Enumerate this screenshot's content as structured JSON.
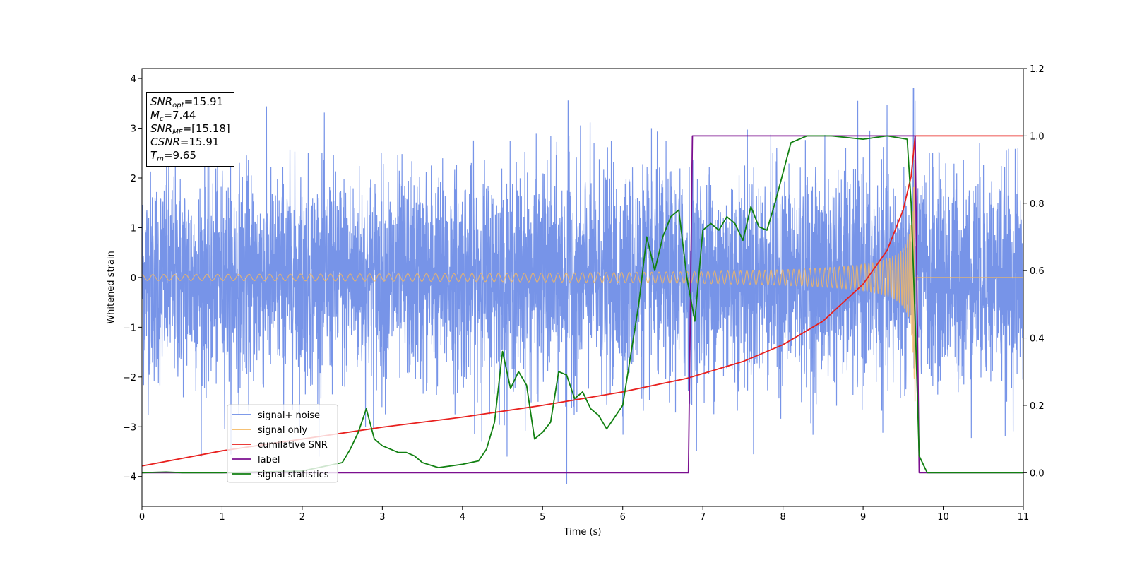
{
  "chart_data": {
    "type": "line",
    "xlabel": "Time (s)",
    "ylabel": "Whitened strain",
    "xlim": [
      0,
      11
    ],
    "ylim": [
      -4.6,
      4.2
    ],
    "y2lim": [
      -0.1,
      1.2
    ],
    "grid": false,
    "legend_position": "lower-left",
    "x_ticks": [
      0,
      1,
      2,
      3,
      4,
      5,
      6,
      7,
      8,
      9,
      10,
      11
    ],
    "x_tick_labels": [
      "0",
      "1",
      "2",
      "3",
      "4",
      "5",
      "6",
      "7",
      "8",
      "9",
      "10",
      "11"
    ],
    "y_ticks": [
      -4,
      -3,
      -2,
      -1,
      0,
      1,
      2,
      3,
      4
    ],
    "y_tick_labels": [
      "−4",
      "−3",
      "−2",
      "−1",
      "0",
      "1",
      "2",
      "3",
      "4"
    ],
    "y2_ticks": [
      0.0,
      0.2,
      0.4,
      0.6,
      0.8,
      1.0,
      1.2
    ],
    "y2_tick_labels": [
      "0.0",
      "0.2",
      "0.4",
      "0.6",
      "0.8",
      "1.0",
      "1.2"
    ],
    "annotation": {
      "snr_opt_sym": "SNR",
      "snr_opt_sub": "opt",
      "snr_opt_val": "=15.91",
      "mc_sym": "M",
      "mc_sub": "c",
      "mc_val": "=7.44",
      "snr_mf_sym": "SNR",
      "snr_mf_sub": "MF",
      "snr_mf_val": "=[15.18]",
      "csnr_sym": "CSNR",
      "csnr_val": "=15.91",
      "tm_sym": "T",
      "tm_sub": "m",
      "tm_val": "=9.65"
    },
    "series": [
      {
        "name": "signal+ noise",
        "color": "#6b8be6",
        "axis": "left",
        "description_values": "dense Gaussian-like noise, std ~1, extremes about -4.15 to 3.8"
      },
      {
        "name": "signal only",
        "color": "#f5b860",
        "axis": "left",
        "chirp": {
          "t_start": 0.0,
          "t_merge": 9.65,
          "amp_start": 0.06,
          "amp_peak": 2.6
        }
      },
      {
        "name": "cumilative SNR",
        "color": "#e8201e",
        "axis": "right",
        "x": [
          0,
          1,
          2,
          3,
          4,
          5,
          6,
          6.8,
          7.5,
          8,
          8.5,
          9,
          9.3,
          9.5,
          9.6,
          9.65,
          11
        ],
        "y": [
          0.02,
          0.065,
          0.1,
          0.135,
          0.165,
          0.2,
          0.24,
          0.28,
          0.33,
          0.38,
          0.45,
          0.56,
          0.66,
          0.78,
          0.88,
          1.0,
          1.0
        ]
      },
      {
        "name": "label",
        "color": "#7b0f8f",
        "axis": "right",
        "x": [
          0,
          6.82,
          6.87,
          9.65,
          9.7,
          11
        ],
        "y": [
          0,
          0,
          1,
          1,
          0,
          0
        ]
      },
      {
        "name": "signal statistics",
        "color": "#118011",
        "axis": "right",
        "x": [
          0,
          0.3,
          0.5,
          1,
          2,
          2.3,
          2.5,
          2.6,
          2.7,
          2.8,
          2.9,
          3.0,
          3.2,
          3.3,
          3.4,
          3.5,
          3.7,
          4.0,
          4.2,
          4.3,
          4.4,
          4.5,
          4.6,
          4.7,
          4.8,
          4.9,
          5.0,
          5.1,
          5.2,
          5.3,
          5.4,
          5.5,
          5.6,
          5.7,
          5.8,
          6.0,
          6.2,
          6.3,
          6.4,
          6.5,
          6.6,
          6.7,
          6.8,
          6.9,
          7.0,
          7.1,
          7.2,
          7.3,
          7.4,
          7.5,
          7.6,
          7.7,
          7.8,
          7.9,
          8.1,
          8.3,
          8.6,
          9.0,
          9.3,
          9.55,
          9.6,
          9.65,
          9.7,
          9.8,
          11
        ],
        "y": [
          0,
          0.002,
          0,
          0,
          0.005,
          0.02,
          0.03,
          0.07,
          0.12,
          0.19,
          0.1,
          0.08,
          0.06,
          0.06,
          0.05,
          0.03,
          0.015,
          0.025,
          0.035,
          0.07,
          0.15,
          0.36,
          0.25,
          0.3,
          0.26,
          0.1,
          0.12,
          0.15,
          0.3,
          0.29,
          0.22,
          0.24,
          0.19,
          0.17,
          0.13,
          0.2,
          0.5,
          0.7,
          0.6,
          0.7,
          0.76,
          0.78,
          0.58,
          0.45,
          0.72,
          0.74,
          0.72,
          0.76,
          0.74,
          0.69,
          0.79,
          0.73,
          0.72,
          0.8,
          0.98,
          1.0,
          1.0,
          0.99,
          1.0,
          0.99,
          0.8,
          0.45,
          0.05,
          0.0,
          0.0
        ]
      }
    ]
  }
}
